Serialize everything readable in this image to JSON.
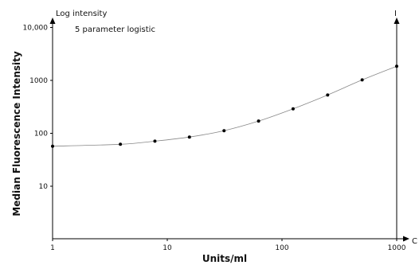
{
  "chart_data": {
    "type": "line",
    "series": [
      {
        "x": [
          1,
          3.9,
          7.8,
          15.6,
          31.25,
          62.5,
          125,
          250,
          500,
          1000
        ],
        "y": [
          57,
          62,
          71,
          85,
          112,
          170,
          290,
          530,
          1020,
          1850
        ]
      }
    ],
    "xscale": "log",
    "yscale": "log",
    "xlim": [
      1,
      1000
    ],
    "ylim": [
      1,
      10000
    ],
    "xticks": [
      {
        "value": 1,
        "label": "1"
      },
      {
        "value": 10,
        "label": "10"
      },
      {
        "value": 100,
        "label": "100"
      },
      {
        "value": 1000,
        "label": "1000"
      }
    ],
    "yticks": [
      {
        "value": 10,
        "label": "10"
      },
      {
        "value": 100,
        "label": "100"
      },
      {
        "value": 1000,
        "label": "1000"
      },
      {
        "value": 10000,
        "label": "10,000"
      }
    ],
    "xlabel": "Units/ml",
    "ylabel": "Median Fluorescence Intensity",
    "y_axis_note": "Log intensity",
    "annotation": "5 parameter logistic",
    "right_axis_label": "I",
    "x_axis_end_label": "C",
    "grid": false,
    "legend": "none",
    "colors": {
      "curve": "#888888",
      "points": "#000000",
      "axes": "#000000"
    }
  }
}
